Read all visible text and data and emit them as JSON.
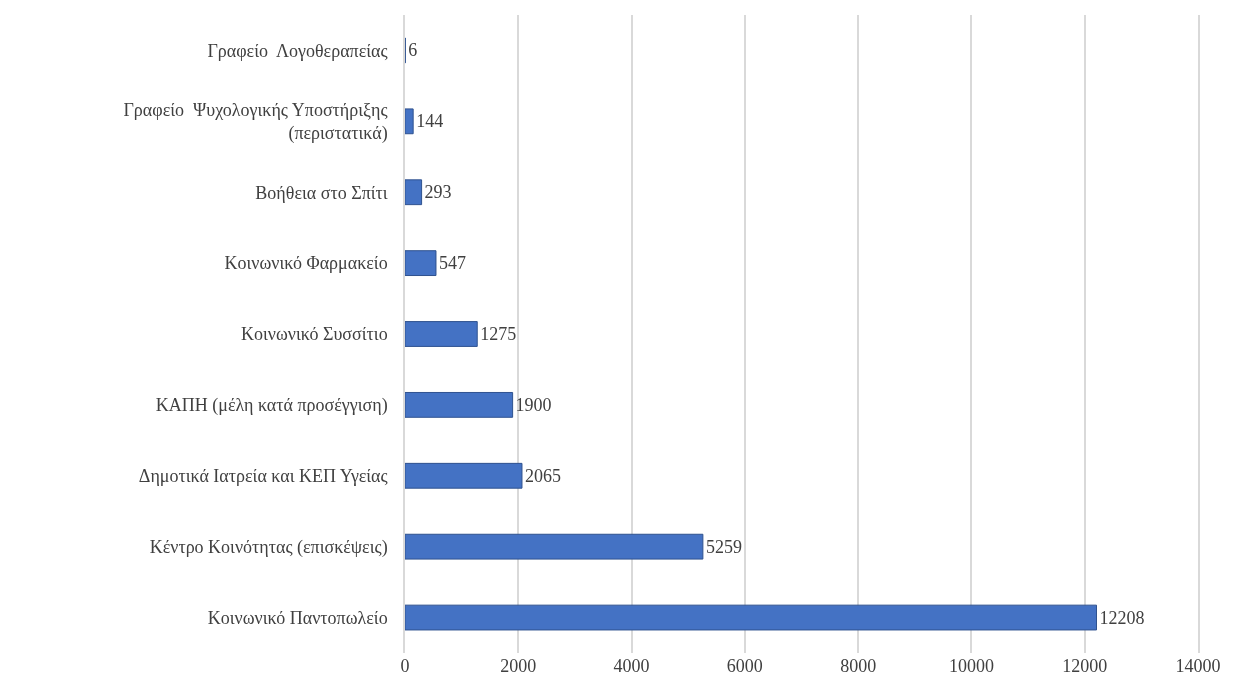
{
  "chart_data": {
    "type": "bar",
    "orientation": "horizontal",
    "categories": [
      "Γραφείο  Λογοθεραπείας",
      "Γραφείο  Ψυχολογικής Υποστήριξης (περιστατικά)",
      "Βοήθεια στο Σπίτι",
      "Κοινωνικό Φαρμακείο",
      "Κοινωνικό Συσσίτιο",
      "ΚΑΠΗ (μέλη κατά προσέγγιση)",
      "Δημοτικά Ιατρεία και ΚΕΠ Υγείας",
      "Κέντρο Κοινότητας (επισκέψεις)",
      "Κοινωνικό Παντοπωλείο"
    ],
    "values": [
      6,
      144,
      293,
      547,
      1275,
      1900,
      2065,
      5259,
      12208
    ],
    "color": "#4472c4",
    "data_labels": true,
    "xlim": [
      0,
      14000
    ],
    "xticks": [
      0,
      2000,
      4000,
      6000,
      8000,
      10000,
      12000,
      14000
    ],
    "grid": "x"
  }
}
